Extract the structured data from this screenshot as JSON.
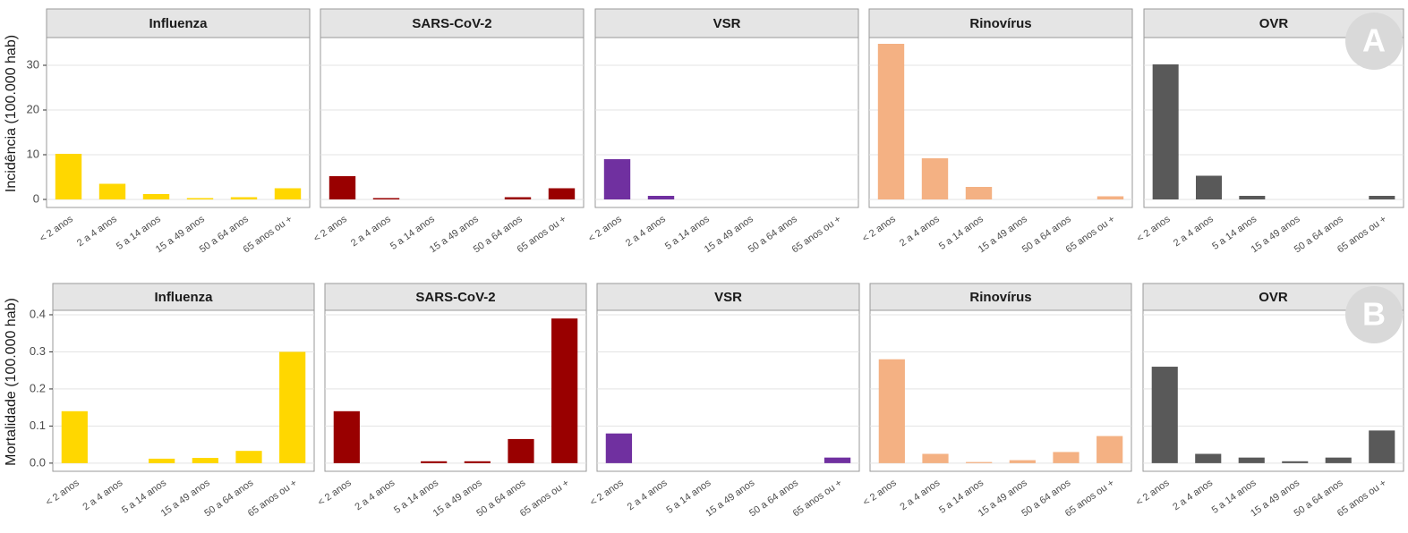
{
  "chart_data": [
    {
      "type": "bar",
      "title": "Influenza",
      "ylabel": "Incidência (100.000 hab)",
      "categories": [
        "< 2 anos",
        "2 a 4 anos",
        "5 a 14 anos",
        "15 a 49 anos",
        "50 a 64 anos",
        "65 anos ou +"
      ],
      "values": [
        10.2,
        3.5,
        1.2,
        0.3,
        0.5,
        2.5
      ],
      "color": "#ffd700",
      "ylim": [
        -1.8,
        36.2
      ],
      "yticks": [
        0,
        10,
        20,
        30
      ],
      "grid": true
    },
    {
      "type": "bar",
      "title": "SARS-CoV-2",
      "categories": [
        "< 2 anos",
        "2 a 4 anos",
        "5 a 14 anos",
        "15 a 49 anos",
        "50 a 64 anos",
        "65 anos ou +"
      ],
      "values": [
        5.2,
        0.3,
        0,
        0,
        0.5,
        2.5
      ],
      "color": "#990000",
      "ylim": [
        -1.8,
        36.2
      ],
      "grid": true
    },
    {
      "type": "bar",
      "title": "VSR",
      "categories": [
        "< 2 anos",
        "2 a 4 anos",
        "5 a 14 anos",
        "15 a 49 anos",
        "50 a 64 anos",
        "65 anos ou +"
      ],
      "values": [
        9,
        0.8,
        0,
        0,
        0,
        0
      ],
      "color": "#7030a0",
      "ylim": [
        -1.8,
        36.2
      ],
      "grid": true
    },
    {
      "type": "bar",
      "title": "Rinovírus",
      "categories": [
        "< 2 anos",
        "2 a 4 anos",
        "5 a 14 anos",
        "15 a 49 anos",
        "50 a 64 anos",
        "65 anos ou +"
      ],
      "values": [
        34.8,
        9.2,
        2.8,
        0,
        0,
        0.7
      ],
      "color": "#f4b183",
      "ylim": [
        -1.8,
        36.2
      ],
      "grid": true
    },
    {
      "type": "bar",
      "title": "OVR",
      "annotation": "A",
      "categories": [
        "< 2 anos",
        "2 a 4 anos",
        "5 a 14 anos",
        "15 a 49 anos",
        "50 a 64 anos",
        "65 anos ou +"
      ],
      "values": [
        30.2,
        5.3,
        0.8,
        0,
        0,
        0.8
      ],
      "color": "#595959",
      "ylim": [
        -1.8,
        36.2
      ],
      "grid": true
    },
    {
      "type": "bar",
      "title": "Influenza",
      "ylabel": "Mortalidade (100.000 hab)",
      "categories": [
        "< 2 anos",
        "2 a 4 anos",
        "5 a 14 anos",
        "15 a 49 anos",
        "50 a 64 anos",
        "65 anos ou +"
      ],
      "values": [
        0.14,
        0,
        0.012,
        0.014,
        0.033,
        0.3
      ],
      "color": "#ffd700",
      "ylim": [
        -0.022,
        0.412
      ],
      "yticks": [
        {
          "value": 0,
          "label": "0.0"
        },
        0.1,
        0.2,
        0.3,
        0.4
      ],
      "grid": true
    },
    {
      "type": "bar",
      "title": "SARS-CoV-2",
      "categories": [
        "< 2 anos",
        "2 a 4 anos",
        "5 a 14 anos",
        "15 a 49 anos",
        "50 a 64 anos",
        "65 anos ou +"
      ],
      "values": [
        0.14,
        0,
        0.005,
        0.005,
        0.065,
        0.39
      ],
      "color": "#990000",
      "ylim": [
        -0.022,
        0.412
      ],
      "grid": true
    },
    {
      "type": "bar",
      "title": "VSR",
      "categories": [
        "< 2 anos",
        "2 a 4 anos",
        "5 a 14 anos",
        "15 a 49 anos",
        "50 a 64 anos",
        "65 anos ou +"
      ],
      "values": [
        0.08,
        0,
        0,
        0,
        0,
        0.015
      ],
      "color": "#7030a0",
      "ylim": [
        -0.022,
        0.412
      ],
      "grid": true
    },
    {
      "type": "bar",
      "title": "Rinovírus",
      "categories": [
        "< 2 anos",
        "2 a 4 anos",
        "5 a 14 anos",
        "15 a 49 anos",
        "50 a 64 anos",
        "65 anos ou +"
      ],
      "values": [
        0.28,
        0.025,
        0.003,
        0.008,
        0.03,
        0.073
      ],
      "color": "#f4b183",
      "ylim": [
        -0.022,
        0.412
      ],
      "grid": true
    },
    {
      "type": "bar",
      "title": "OVR",
      "annotation": "B",
      "categories": [
        "< 2 anos",
        "2 a 4 anos",
        "5 a 14 anos",
        "15 a 49 anos",
        "50 a 64 anos",
        "65 anos ou +"
      ],
      "values": [
        0.26,
        0.025,
        0.015,
        0.005,
        0.015,
        0.088
      ],
      "color": "#595959",
      "ylim": [
        -0.022,
        0.412
      ],
      "grid": true
    }
  ]
}
